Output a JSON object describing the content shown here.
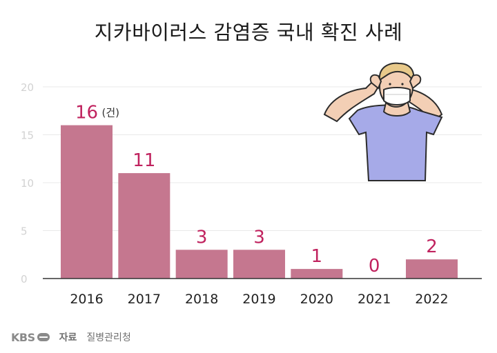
{
  "chart_data": {
    "type": "bar",
    "title": "지카바이러스 감염증 국내 확진 사례",
    "categories": [
      "2016",
      "2017",
      "2018",
      "2019",
      "2020",
      "2021",
      "2022"
    ],
    "values": [
      16,
      11,
      3,
      3,
      1,
      0,
      2
    ],
    "unit_label": "(건)",
    "y_ticks": [
      0,
      5,
      10,
      15,
      20
    ],
    "ylim": [
      0,
      20
    ],
    "grid": true,
    "bar_color": "#c5778f",
    "value_label_color": "#c0225e"
  },
  "footer": {
    "brand": "KBS",
    "source_label": "자료",
    "source": "질병관리청"
  }
}
